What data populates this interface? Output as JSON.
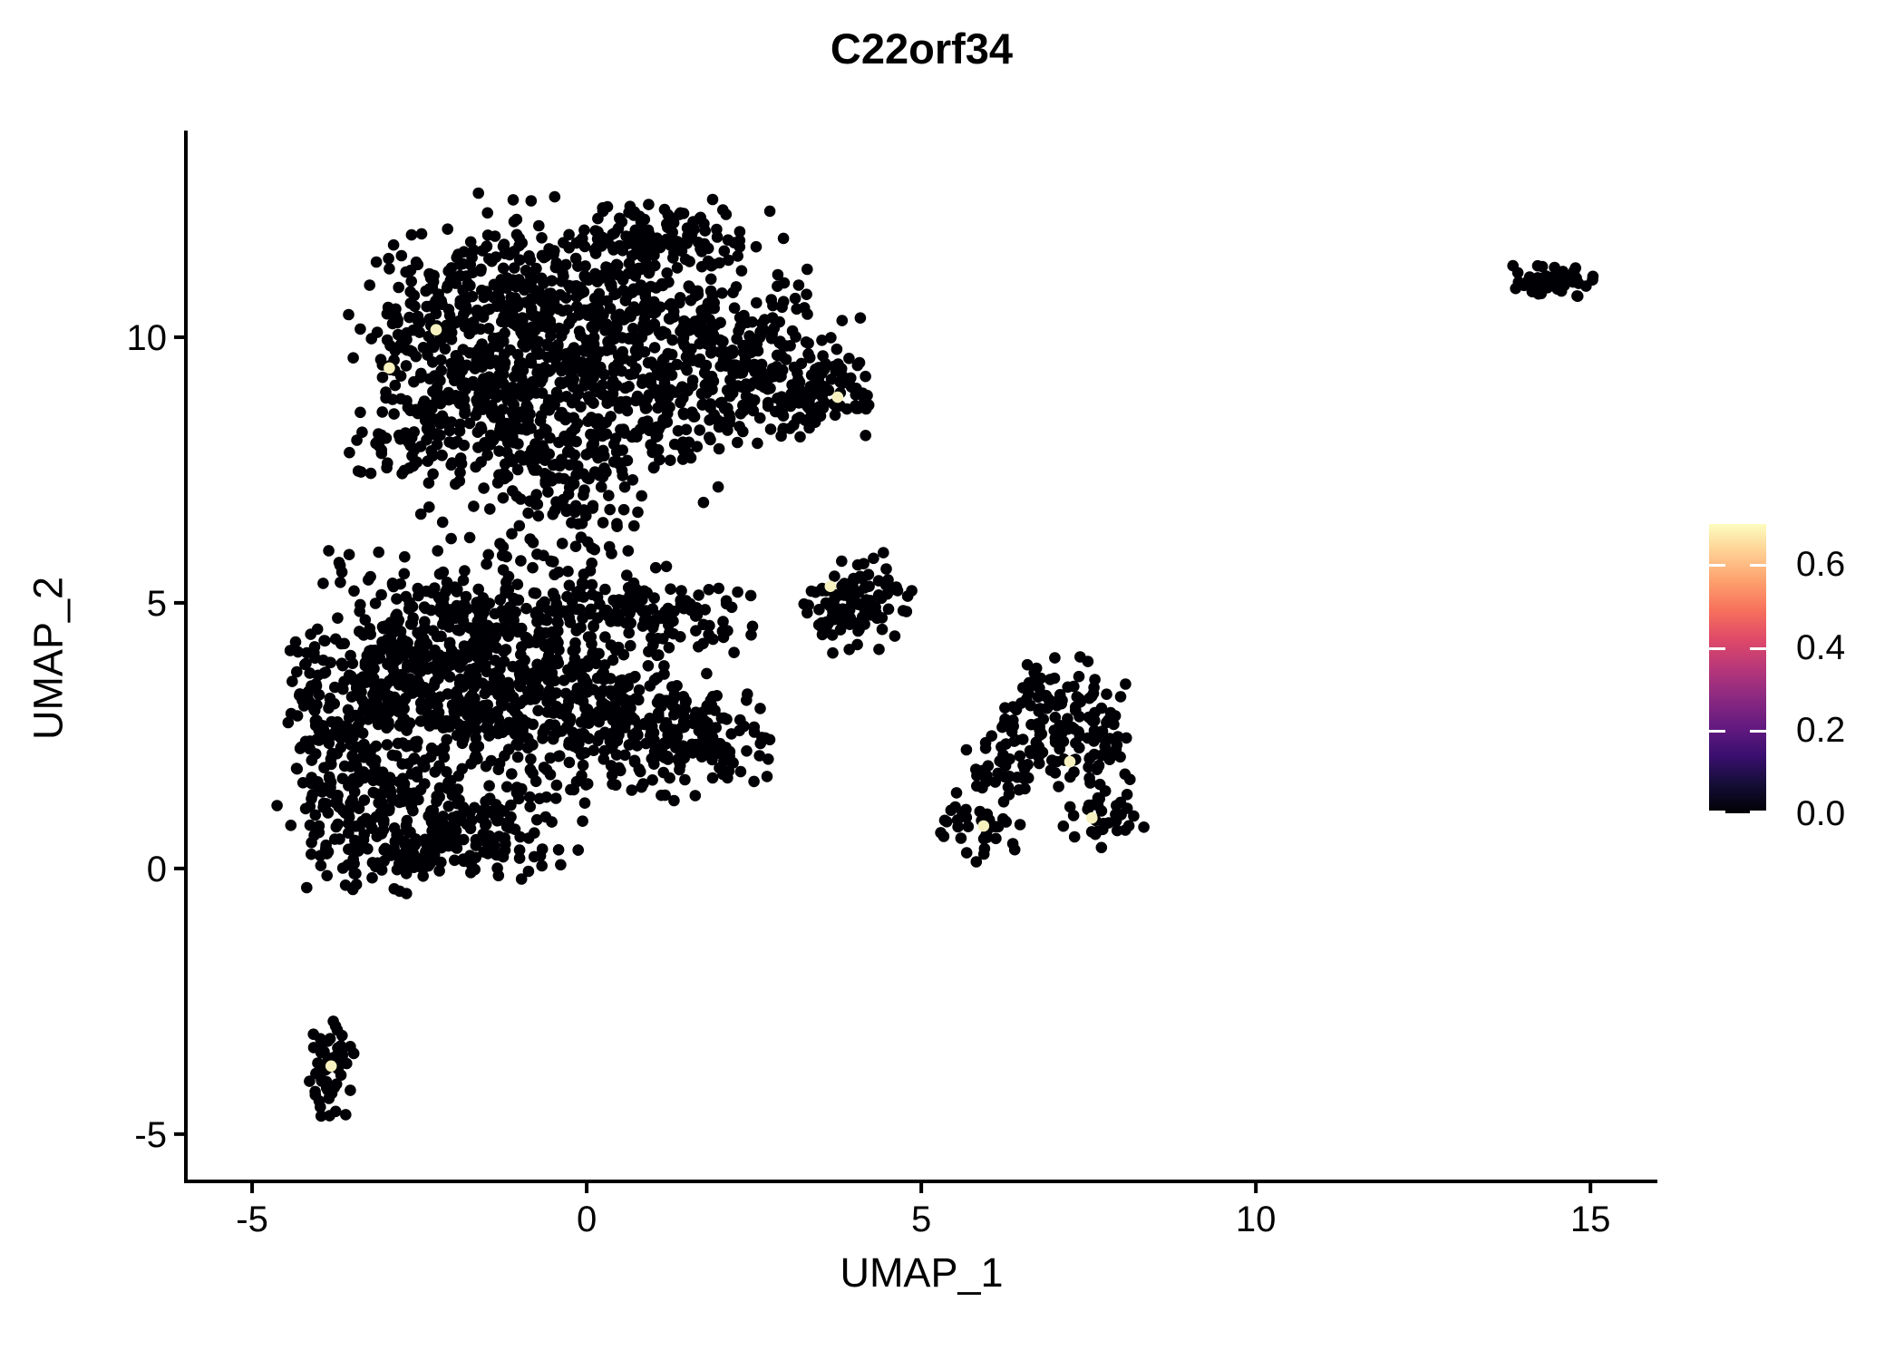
{
  "title": "C22orf34",
  "axes": {
    "x_label": "UMAP_1",
    "y_label": "UMAP_2",
    "x_ticks": [
      "-5",
      "0",
      "5",
      "10",
      "15"
    ],
    "x_tick_values": [
      -5,
      0,
      5,
      10,
      15
    ],
    "y_ticks": [
      "-5",
      "0",
      "5",
      "10"
    ],
    "y_tick_values": [
      -5,
      0,
      5,
      10
    ],
    "x_range": [
      -5.99,
      16.0
    ],
    "y_range": [
      -5.89,
      13.89
    ],
    "axis_color": "#000000"
  },
  "legend": {
    "tick_labels": [
      "0.6",
      "0.4",
      "0.2",
      "0.0"
    ],
    "tick_values": [
      0.6,
      0.4,
      0.2,
      0.0
    ],
    "value_range": [
      0.0,
      0.696
    ],
    "colormap": "magma",
    "gradient_stops": [
      "#000004",
      "#140E36",
      "#3B0F70",
      "#641A80",
      "#8C2981",
      "#B73779",
      "#DE4968",
      "#F7705C",
      "#FE9F6D",
      "#FECE91",
      "#FCFDBF"
    ]
  },
  "chart_data": {
    "type": "scatter",
    "title": "C22orf34",
    "xlabel": "UMAP_1",
    "ylabel": "UMAP_2",
    "xlim": [
      -5.99,
      16.0
    ],
    "ylim": [
      -5.89,
      13.89
    ],
    "grid": false,
    "legend_position": "right",
    "point_color": "#000004",
    "highlight_color": "#F6F1BF",
    "point_radius_px": 6.3,
    "seed": 7,
    "clusters": [
      {
        "name": "top-blob-core",
        "cx": 0.2,
        "cy": 10.8,
        "sx": 1.35,
        "sy": 0.85,
        "n": 430
      },
      {
        "name": "top-blob-left",
        "cx": -1.9,
        "cy": 9.7,
        "sx": 0.75,
        "sy": 1.05,
        "n": 300
      },
      {
        "name": "top-blob-mid",
        "cx": 0.5,
        "cy": 9.0,
        "sx": 1.35,
        "sy": 0.8,
        "n": 360
      },
      {
        "name": "top-blob-right",
        "cx": 2.4,
        "cy": 9.4,
        "sx": 0.8,
        "sy": 0.7,
        "n": 170
      },
      {
        "name": "top-blob-right-arm",
        "cx": 3.75,
        "cy": 8.95,
        "sx": 0.4,
        "sy": 0.33,
        "n": 60
      },
      {
        "name": "top-blob-peak",
        "cx": 1.15,
        "cy": 11.9,
        "sx": 0.55,
        "sy": 0.3,
        "n": 80
      },
      {
        "name": "top-blob-neck",
        "cx": -0.4,
        "cy": 7.6,
        "sx": 0.95,
        "sy": 0.5,
        "n": 120
      },
      {
        "name": "top-blob-left-fringe",
        "cx": -2.7,
        "cy": 7.9,
        "sx": 0.4,
        "sy": 0.4,
        "n": 40
      },
      {
        "name": "bridge",
        "cx": -0.45,
        "cy": 6.4,
        "sx": 0.75,
        "sy": 0.55,
        "n": 55
      },
      {
        "name": "mid-blob-left",
        "cx": -2.9,
        "cy": 3.5,
        "sx": 0.75,
        "sy": 1.1,
        "n": 300
      },
      {
        "name": "mid-blob-upperleft",
        "cx": -1.7,
        "cy": 3.9,
        "sx": 0.8,
        "sy": 0.95,
        "n": 280
      },
      {
        "name": "mid-blob-center",
        "cx": -0.4,
        "cy": 3.1,
        "sx": 1.0,
        "sy": 0.85,
        "n": 260
      },
      {
        "name": "mid-blob-wedge",
        "cx": 0.9,
        "cy": 2.6,
        "sx": 0.85,
        "sy": 0.6,
        "n": 160
      },
      {
        "name": "mid-blob-wedge-tip",
        "cx": 1.9,
        "cy": 2.5,
        "sx": 0.45,
        "sy": 0.35,
        "n": 50
      },
      {
        "name": "mid-blob-lowerleft",
        "cx": -3.3,
        "cy": 1.1,
        "sx": 0.6,
        "sy": 0.75,
        "n": 150
      },
      {
        "name": "mid-blob-bottom",
        "cx": -1.8,
        "cy": 0.8,
        "sx": 0.9,
        "sy": 0.55,
        "n": 150
      },
      {
        "name": "mid-blob-top-band",
        "cx": -0.2,
        "cy": 4.9,
        "sx": 1.2,
        "sy": 0.45,
        "n": 130
      },
      {
        "name": "mid-blob-band-end",
        "cx": 1.4,
        "cy": 4.75,
        "sx": 0.5,
        "sy": 0.3,
        "n": 45
      },
      {
        "name": "mid-blob-left-edge",
        "cx": -3.95,
        "cy": 2.9,
        "sx": 0.25,
        "sy": 0.85,
        "n": 55
      },
      {
        "name": "mid-blob-bottom-tail",
        "cx": -2.6,
        "cy": 0.3,
        "sx": 0.5,
        "sy": 0.3,
        "n": 45
      },
      {
        "name": "small-mid-cluster",
        "cx": 4.05,
        "cy": 5.0,
        "sx": 0.38,
        "sy": 0.42,
        "n": 95
      },
      {
        "name": "small-mid-west",
        "cx": 3.6,
        "cy": 4.75,
        "sx": 0.2,
        "sy": 0.25,
        "n": 20
      },
      {
        "name": "right-cluster-upper",
        "cx": 7.0,
        "cy": 2.7,
        "sx": 0.5,
        "sy": 0.5,
        "n": 85
      },
      {
        "name": "right-cluster-east",
        "cx": 7.65,
        "cy": 2.4,
        "sx": 0.25,
        "sy": 0.55,
        "n": 40
      },
      {
        "name": "right-cluster-mid",
        "cx": 6.4,
        "cy": 1.9,
        "sx": 0.45,
        "sy": 0.35,
        "n": 40
      },
      {
        "name": "right-cluster-sw",
        "cx": 5.85,
        "cy": 0.75,
        "sx": 0.35,
        "sy": 0.28,
        "n": 35
      },
      {
        "name": "right-cluster-se",
        "cx": 7.7,
        "cy": 0.95,
        "sx": 0.3,
        "sy": 0.25,
        "n": 30
      },
      {
        "name": "right-cluster-tip",
        "cx": 7.15,
        "cy": 3.5,
        "sx": 0.28,
        "sy": 0.3,
        "n": 22
      },
      {
        "name": "bottom-left-cluster",
        "cx": -3.8,
        "cy": -3.75,
        "sx": 0.16,
        "sy": 0.5,
        "n": 55
      },
      {
        "name": "top-right-cluster",
        "cx": 14.5,
        "cy": 11.05,
        "sx": 0.33,
        "sy": 0.14,
        "n": 60
      }
    ],
    "highlighted_points": [
      {
        "x": -2.25,
        "y": 10.14,
        "value": 0.62
      },
      {
        "x": -2.95,
        "y": 9.42,
        "value": 0.6
      },
      {
        "x": 3.75,
        "y": 8.87,
        "value": 0.65
      },
      {
        "x": 3.64,
        "y": 5.31,
        "value": 0.63
      },
      {
        "x": 7.22,
        "y": 2.01,
        "value": 0.66
      },
      {
        "x": 5.93,
        "y": 0.8,
        "value": 0.61
      },
      {
        "x": 7.55,
        "y": 0.95,
        "value": 0.64
      },
      {
        "x": -3.82,
        "y": -3.72,
        "value": 0.62
      }
    ]
  }
}
